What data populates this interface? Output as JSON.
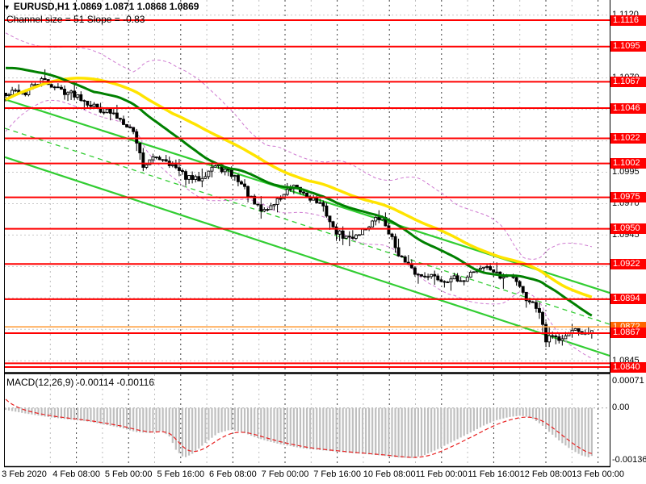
{
  "header": {
    "dropdown_icon": "▼",
    "symbol_line": "EURUSD,H1  1.0869 1.0871 1.0868 1.0869",
    "channel_line": "Channel size = 51 Slope = -0.83"
  },
  "macd_panel": {
    "label": "MACD(12,26,9) -0.00114 -0.00116",
    "scale_labels": [
      {
        "label": "0.00071",
        "value": 0.00071
      },
      {
        "label": "0.00",
        "value": 0
      },
      {
        "label": "-0.00136",
        "value": -0.00136
      }
    ]
  },
  "colors": {
    "red_level": "#ff0000",
    "orange_level_line": "#ffa040",
    "orange_badge": "#ff6600",
    "badge_red": "#ff0000",
    "channel_green": "#32cd32",
    "ma_fast_darkgreen": "#008000",
    "ma_slow_yellow": "#ffe400",
    "bollinger_violet": "#cf7ad1",
    "grid_h": "#c9c9c9",
    "vgrid_major": "#3c3c3c",
    "vgrid_minor": "#bdbdbd",
    "candle_outline": "#000000",
    "bull_fill": "#ffffff",
    "bear_fill": "#000000",
    "macd_bar": "#bfbfbf",
    "macd_signal": "#e82020",
    "zero_line": "#aaaaaa",
    "frame": "#000000",
    "badge_text": "#ffffff"
  },
  "chart_data": {
    "type": "candlestick",
    "symbol": "EURUSD",
    "timeframe": "H1",
    "ohlc": {
      "open": 1.0869,
      "high": 1.0871,
      "low": 1.0868,
      "close": 1.0869
    },
    "y_ticks": [
      "1.1120",
      "1.1095",
      "1.1070",
      "1.1045",
      "1.1020",
      "1.0995",
      "1.0970",
      "1.0945",
      "1.0920",
      "1.0895",
      "1.0870",
      "1.0845"
    ],
    "price_badges": [
      {
        "label": "1.0872",
        "price": 1.0872,
        "color": "orange"
      },
      {
        "label": "1.1116",
        "price": 1.1116,
        "color": "red"
      },
      {
        "label": "1.1095",
        "price": 1.1095,
        "color": "red"
      },
      {
        "label": "1.1067",
        "price": 1.1067,
        "color": "red"
      },
      {
        "label": "1.1046",
        "price": 1.1046,
        "color": "red"
      },
      {
        "label": "1.1022",
        "price": 1.1022,
        "color": "red"
      },
      {
        "label": "1.1002",
        "price": 1.1002,
        "color": "red"
      },
      {
        "label": "1.0975",
        "price": 1.0975,
        "color": "red"
      },
      {
        "label": "1.0950",
        "price": 1.095,
        "color": "red"
      },
      {
        "label": "1.0922",
        "price": 1.0922,
        "color": "red"
      },
      {
        "label": "1.0894",
        "price": 1.0894,
        "color": "red"
      },
      {
        "label": "1.0867",
        "price": 1.0867,
        "color": "red"
      },
      {
        "label": "1.0840",
        "price": 1.084,
        "color": "red"
      }
    ],
    "x_labels": [
      "3 Feb 2020",
      "4 Feb 08:00",
      "5 Feb 00:00",
      "5 Feb 16:00",
      "6 Feb 08:00",
      "7 Feb 00:00",
      "7 Feb 16:00",
      "10 Feb 08:00",
      "11 Feb 00:00",
      "11 Feb 16:00",
      "12 Feb 08:00",
      "13 Feb 00:00"
    ],
    "red_levels": [
      1.1116,
      1.1095,
      1.1067,
      1.1046,
      1.1022,
      1.1002,
      1.0975,
      1.095,
      1.0922,
      1.0894,
      1.0867,
      1.0843,
      1.084
    ],
    "orange_level": 1.0872,
    "channel": {
      "size_pips": 51,
      "slope": -0.83,
      "upper": [
        [
          6,
          1.1053
        ],
        [
          755,
          1.0899
        ]
      ],
      "middle": [
        [
          6,
          1.103
        ],
        [
          755,
          1.0874
        ]
      ],
      "lower": [
        [
          6,
          1.1007
        ],
        [
          755,
          1.0849
        ]
      ]
    },
    "close_path": [
      [
        6,
        1.1055
      ],
      [
        14,
        1.1058
      ],
      [
        22,
        1.106
      ],
      [
        30,
        1.1057
      ],
      [
        38,
        1.1062
      ],
      [
        46,
        1.1066
      ],
      [
        54,
        1.1068
      ],
      [
        62,
        1.1065
      ],
      [
        70,
        1.1062
      ],
      [
        78,
        1.106
      ],
      [
        86,
        1.1058
      ],
      [
        94,
        1.1057
      ],
      [
        102,
        1.1054
      ],
      [
        110,
        1.105
      ],
      [
        118,
        1.1047
      ],
      [
        126,
        1.1045
      ],
      [
        134,
        1.1043
      ],
      [
        142,
        1.104
      ],
      [
        150,
        1.1037
      ],
      [
        158,
        1.1033
      ],
      [
        166,
        1.1026
      ],
      [
        172,
        1.1014
      ],
      [
        176,
        1.1
      ],
      [
        184,
        1.1003
      ],
      [
        194,
        1.1007
      ],
      [
        204,
        1.1006
      ],
      [
        214,
        1.1
      ],
      [
        224,
        1.0994
      ],
      [
        234,
        1.099
      ],
      [
        244,
        1.0989
      ],
      [
        254,
        1.0994
      ],
      [
        264,
        1.1
      ],
      [
        274,
        1.0998
      ],
      [
        284,
        1.0994
      ],
      [
        294,
        1.099
      ],
      [
        304,
        1.0981
      ],
      [
        314,
        1.097
      ],
      [
        324,
        1.0964
      ],
      [
        334,
        1.0967
      ],
      [
        344,
        1.0973
      ],
      [
        354,
        1.0979
      ],
      [
        364,
        1.0982
      ],
      [
        374,
        1.0979
      ],
      [
        384,
        1.0975
      ],
      [
        394,
        1.0971
      ],
      [
        404,
        1.0963
      ],
      [
        412,
        1.095
      ],
      [
        422,
        1.0945
      ],
      [
        432,
        1.0942
      ],
      [
        442,
        1.0946
      ],
      [
        452,
        1.095
      ],
      [
        462,
        1.0956
      ],
      [
        472,
        1.0959
      ],
      [
        480,
        1.095
      ],
      [
        490,
        1.0935
      ],
      [
        500,
        1.0924
      ],
      [
        510,
        1.0917
      ],
      [
        520,
        1.0912
      ],
      [
        530,
        1.0914
      ],
      [
        540,
        1.0911
      ],
      [
        550,
        1.0908
      ],
      [
        560,
        1.0912
      ],
      [
        570,
        1.0906
      ],
      [
        580,
        1.0914
      ],
      [
        590,
        1.0918
      ],
      [
        600,
        1.092
      ],
      [
        610,
        1.0917
      ],
      [
        620,
        1.0911
      ],
      [
        630,
        1.0913
      ],
      [
        640,
        1.0909
      ],
      [
        648,
        1.09
      ],
      [
        654,
        1.089
      ],
      [
        660,
        1.0893
      ],
      [
        666,
        1.0886
      ],
      [
        672,
        1.0875
      ],
      [
        676,
        1.0862
      ],
      [
        682,
        1.0867
      ],
      [
        688,
        1.0864
      ],
      [
        694,
        1.0861
      ],
      [
        700,
        1.0865
      ],
      [
        706,
        1.0867
      ],
      [
        712,
        1.087
      ],
      [
        718,
        1.0868
      ],
      [
        724,
        1.0866
      ],
      [
        730,
        1.0867
      ],
      [
        736,
        1.0869
      ]
    ],
    "macd": {
      "params": "12,26,9",
      "value": -0.00114,
      "signal": -0.00116,
      "scale_max": 0.00071,
      "scale_min": -0.00136,
      "path": [
        [
          7,
          -5e-05
        ],
        [
          30,
          -0.00014
        ],
        [
          60,
          -0.00024
        ],
        [
          90,
          -0.00031
        ],
        [
          110,
          -0.00036
        ],
        [
          130,
          -0.00044
        ],
        [
          150,
          -0.00052
        ],
        [
          168,
          -0.00063
        ],
        [
          185,
          -0.00066
        ],
        [
          200,
          -0.0006
        ],
        [
          210,
          -0.00075
        ],
        [
          218,
          -0.0011
        ],
        [
          228,
          -0.00131
        ],
        [
          240,
          -0.00118
        ],
        [
          255,
          -0.0009
        ],
        [
          270,
          -0.00066
        ],
        [
          285,
          -0.00057
        ],
        [
          300,
          -0.00063
        ],
        [
          315,
          -0.00076
        ],
        [
          330,
          -0.00086
        ],
        [
          345,
          -0.00094
        ],
        [
          360,
          -0.001
        ],
        [
          375,
          -0.00106
        ],
        [
          395,
          -0.0011
        ],
        [
          415,
          -0.00114
        ],
        [
          435,
          -0.00118
        ],
        [
          455,
          -0.00121
        ],
        [
          475,
          -0.00125
        ],
        [
          495,
          -0.0013
        ],
        [
          510,
          -0.00131
        ],
        [
          525,
          -0.00124
        ],
        [
          540,
          -0.0011
        ],
        [
          555,
          -0.00094
        ],
        [
          570,
          -0.00078
        ],
        [
          585,
          -0.00062
        ],
        [
          600,
          -0.00045
        ],
        [
          615,
          -0.00032
        ],
        [
          630,
          -0.00024
        ],
        [
          645,
          -0.0002
        ],
        [
          658,
          -0.00026
        ],
        [
          670,
          -0.00043
        ],
        [
          682,
          -0.00066
        ],
        [
          695,
          -0.0009
        ],
        [
          708,
          -0.0011
        ],
        [
          720,
          -0.00124
        ],
        [
          730,
          -0.0013
        ],
        [
          737,
          -0.00119
        ]
      ]
    }
  }
}
